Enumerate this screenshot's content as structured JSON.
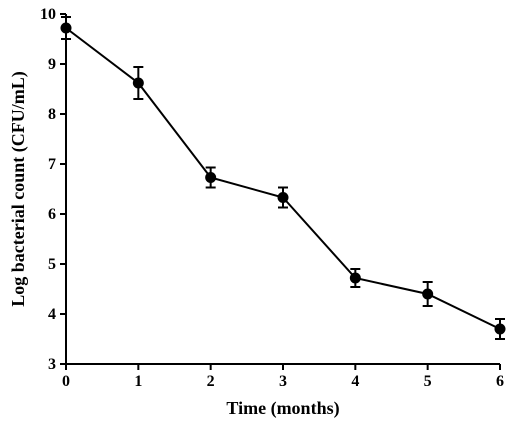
{
  "chart_data": {
    "type": "line",
    "xlabel": "Time (months)",
    "ylabel": "Log bacterial count (CFU/mL)",
    "x": [
      0,
      1,
      2,
      3,
      4,
      5,
      6
    ],
    "y": [
      9.72,
      8.62,
      6.73,
      6.33,
      4.72,
      4.4,
      3.7
    ],
    "error": [
      0.22,
      0.32,
      0.2,
      0.2,
      0.18,
      0.24,
      0.2
    ],
    "xlim": [
      0,
      6
    ],
    "ylim": [
      3,
      10
    ],
    "x_ticks": [
      "0",
      "1",
      "2",
      "3",
      "4",
      "5",
      "6"
    ],
    "y_ticks": [
      "3",
      "4",
      "5",
      "6",
      "7",
      "8",
      "9",
      "10"
    ],
    "grid": false,
    "legend": "none",
    "line_color": "#000000",
    "marker": "filled-circle"
  }
}
